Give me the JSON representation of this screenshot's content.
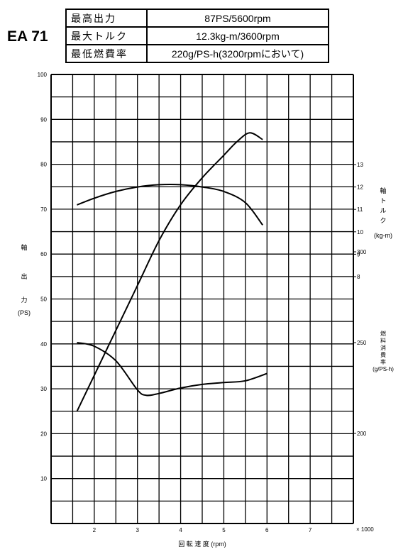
{
  "model": "EA 71",
  "spec_rows": [
    {
      "label": "最高出力",
      "value": "87PS/5600rpm"
    },
    {
      "label": "最大トルク",
      "value": "12.3kg-m/3600rpm"
    },
    {
      "label": "最低燃費率",
      "value": "220g/PS-h(3200rpmにおいて)"
    }
  ],
  "chart_data": {
    "type": "line",
    "x_axis": {
      "label": "回 転 速 度 (rpm)",
      "unit_note": "× 1000",
      "range": [
        1,
        8
      ],
      "ticks": [
        2,
        3,
        4,
        5,
        6,
        7
      ]
    },
    "left_axis": {
      "label_chars": [
        "軸",
        "出",
        "力"
      ],
      "unit": "(PS)",
      "range": [
        0,
        100
      ],
      "ticks": [
        10,
        20,
        30,
        40,
        50,
        60,
        70,
        80,
        90,
        100
      ]
    },
    "torque_axis": {
      "label_chars": [
        "軸",
        "ト",
        "ル",
        "ク"
      ],
      "unit": "(kg-m)",
      "ticks": [
        8,
        9,
        10,
        11,
        12,
        13
      ]
    },
    "fuel_axis": {
      "label_chars": [
        "燃",
        "料",
        "消",
        "費",
        "率"
      ],
      "unit": "(g/PS-h)",
      "ticks": [
        200,
        250,
        300
      ]
    },
    "series": [
      {
        "axis": "power",
        "x": [
          1.6,
          2.0,
          2.5,
          3.0,
          3.5,
          4.0,
          4.5,
          5.0,
          5.3,
          5.6,
          5.9
        ],
        "y": [
          25,
          33,
          43,
          53,
          63,
          71,
          77,
          82,
          85,
          87,
          85.5
        ]
      },
      {
        "axis": "torque",
        "x": [
          1.6,
          2.0,
          2.5,
          3.0,
          3.5,
          4.0,
          4.5,
          5.0,
          5.5,
          5.9
        ],
        "y": [
          11.2,
          11.5,
          11.8,
          12.0,
          12.1,
          12.1,
          12.0,
          11.8,
          11.3,
          10.3
        ]
      },
      {
        "axis": "fuel",
        "x": [
          1.6,
          2.0,
          2.5,
          3.0,
          3.2,
          3.5,
          4.0,
          4.5,
          5.0,
          5.5,
          6.0
        ],
        "y": [
          250,
          248,
          240,
          224,
          221,
          222,
          225,
          227,
          228,
          229,
          233
        ]
      }
    ],
    "grid": true
  }
}
